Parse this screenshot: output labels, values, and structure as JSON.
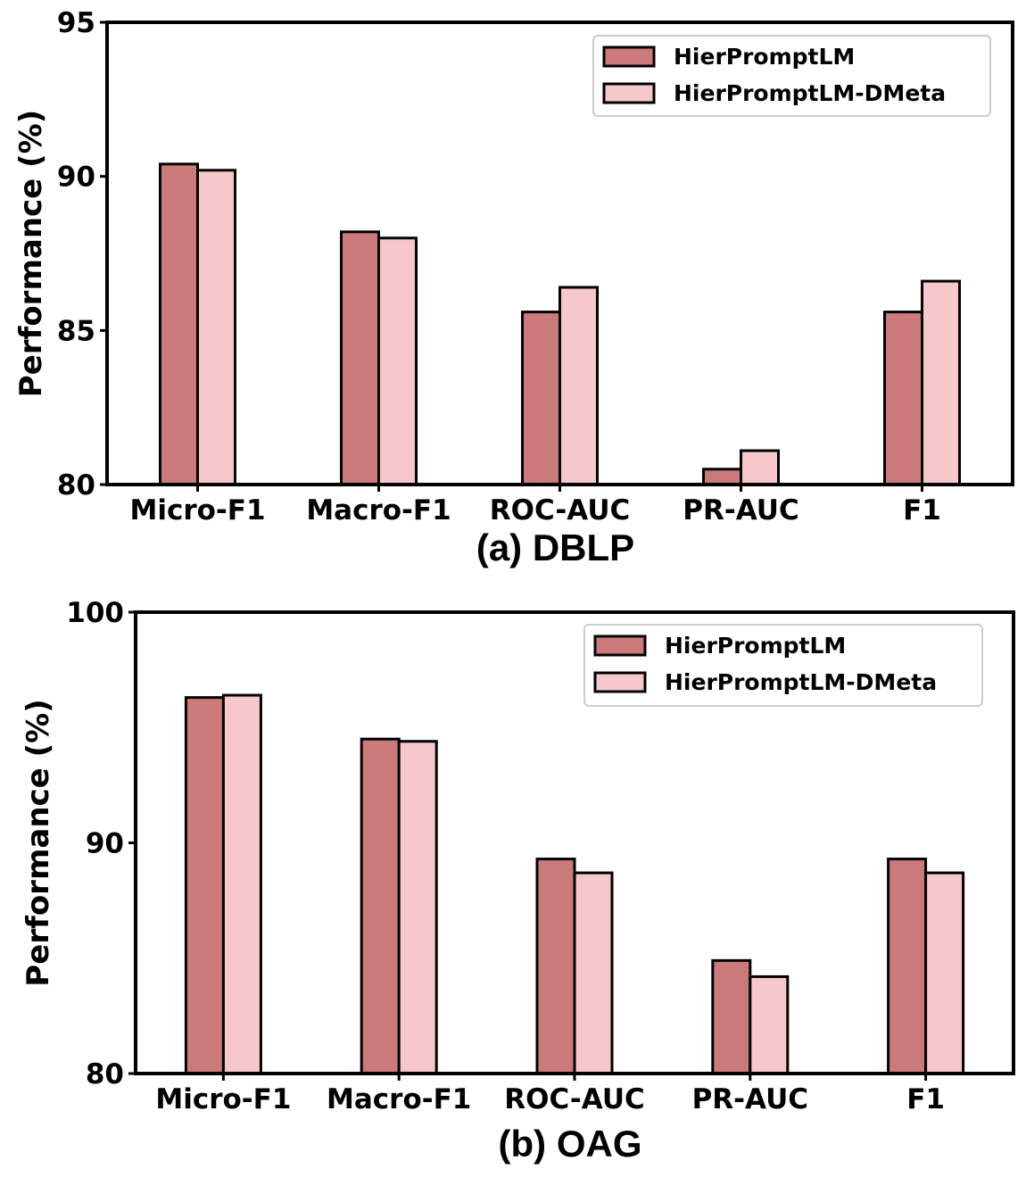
{
  "figure": {
    "colors": {
      "series_1": "#cb7a7b",
      "series_2": "#f6c8c9",
      "edge": "#000000",
      "legend_border": "#cccccc"
    }
  },
  "chart_data": [
    {
      "type": "bar",
      "title": "(a) DBLP",
      "xlabel": "",
      "ylabel": "Performance (%)",
      "ylim": [
        80,
        95
      ],
      "yticks": [
        80,
        85,
        90,
        95
      ],
      "categories": [
        "Micro-F1",
        "Macro-F1",
        "ROC-AUC",
        "PR-AUC",
        "F1"
      ],
      "series": [
        {
          "name": "HierPromptLM",
          "values": [
            90.4,
            88.2,
            85.6,
            80.5,
            85.6
          ]
        },
        {
          "name": "HierPromptLM-DMeta",
          "values": [
            90.2,
            88.0,
            86.4,
            81.1,
            86.6
          ]
        }
      ],
      "legend_position": "top-right"
    },
    {
      "type": "bar",
      "title": "(b) OAG",
      "xlabel": "",
      "ylabel": "Performance (%)",
      "ylim": [
        80,
        100
      ],
      "yticks": [
        80,
        90,
        100
      ],
      "categories": [
        "Micro-F1",
        "Macro-F1",
        "ROC-AUC",
        "PR-AUC",
        "F1"
      ],
      "series": [
        {
          "name": "HierPromptLM",
          "values": [
            96.3,
            94.5,
            89.3,
            84.9,
            89.3
          ]
        },
        {
          "name": "HierPromptLM-DMeta",
          "values": [
            96.4,
            94.4,
            88.7,
            84.2,
            88.7
          ]
        }
      ],
      "legend_position": "top-right"
    }
  ]
}
